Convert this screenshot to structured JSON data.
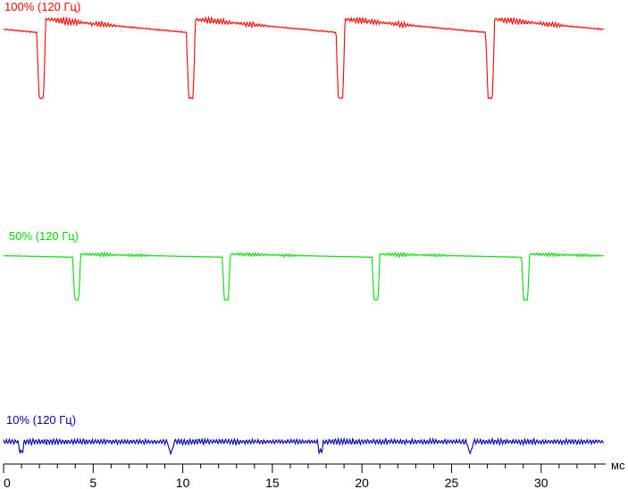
{
  "chart_data": {
    "type": "line",
    "x_unit": "мс",
    "xlim": [
      0,
      33.5
    ],
    "x_ticks": [
      0,
      5,
      10,
      15,
      20,
      25,
      30
    ],
    "x_minor_step": 1,
    "series": [
      {
        "name": "100% (120 Гц)",
        "color": "#ff0000",
        "level_start": 0.97,
        "level_end": 0.8,
        "dip_min": 0.0,
        "dip_times": [
          1.9,
          10.25,
          18.6,
          26.95
        ],
        "dip_width": 0.45
      },
      {
        "name": "50% (120 Гц)",
        "color": "#00dd00",
        "level_start": 0.97,
        "level_end": 0.9,
        "dip_min": 0.0,
        "dip_times": [
          3.9,
          12.25,
          20.6,
          28.95
        ],
        "dip_width": 0.4
      },
      {
        "name": "10% (120 Гц)",
        "color": "#0000b0",
        "level_start": 0.5,
        "level_end": 0.5,
        "dip_min": 0.0,
        "dip_times": [
          0.85,
          9.2,
          17.55,
          25.9
        ],
        "dip_width": 0.3
      }
    ]
  }
}
